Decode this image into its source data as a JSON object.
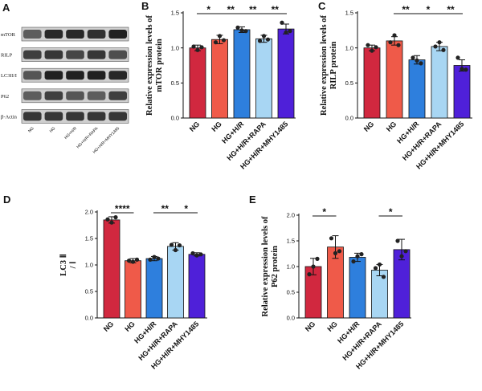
{
  "colors": [
    "#d1283f",
    "#ef5a49",
    "#2e7fdd",
    "#a8d6f3",
    "#4f20d9"
  ],
  "blot": {
    "letter": "A",
    "rows": [
      "mTOR",
      "RILP",
      "LC3II/I",
      "P62",
      "β-Actin"
    ],
    "lanes": [
      "NG",
      "HG",
      "HG+H/R",
      "HG+H/R+RAPA",
      "HG+H/R+MHY1485"
    ]
  },
  "chart_data": [
    {
      "panel": "B",
      "type": "bar",
      "categories": [
        "NG",
        "HG",
        "HG+H/R",
        "HG+H/R+RAPA",
        "HG+H/R+MHY1485"
      ],
      "values": [
        1.0,
        1.12,
        1.26,
        1.13,
        1.27
      ],
      "errors": [
        0.04,
        0.06,
        0.04,
        0.05,
        0.07
      ],
      "points": [
        [
          1.02,
          0.97,
          1.01
        ],
        [
          1.08,
          1.17,
          1.11
        ],
        [
          1.29,
          1.25,
          1.24
        ],
        [
          1.1,
          1.17,
          1.12
        ],
        [
          1.36,
          1.22,
          1.24
        ]
      ],
      "ylabel": "Relative expression levels of mTOR protein",
      "ylim": [
        0,
        1.5
      ],
      "yticks": [
        "0.0",
        "0.5",
        "1.0",
        "1.5"
      ],
      "significance": [
        {
          "from": 0,
          "to": 1,
          "label": "*"
        },
        {
          "from": 1,
          "to": 2,
          "label": "**"
        },
        {
          "from": 2,
          "to": 3,
          "label": "**"
        },
        {
          "from": 3,
          "to": 4,
          "label": "**"
        }
      ]
    },
    {
      "panel": "C",
      "type": "bar",
      "categories": [
        "NG",
        "HG",
        "HG+H/R",
        "HG+H/R+RAPA",
        "HG+H/R+MHY1485"
      ],
      "values": [
        1.0,
        1.1,
        0.83,
        1.02,
        0.75
      ],
      "errors": [
        0.04,
        0.06,
        0.06,
        0.06,
        0.08
      ],
      "points": [
        [
          1.04,
          0.96,
          1.01
        ],
        [
          1.08,
          1.18,
          1.04
        ],
        [
          0.86,
          0.82,
          0.78
        ],
        [
          1.02,
          1.08,
          0.97
        ],
        [
          0.86,
          0.7,
          0.69
        ]
      ],
      "ylabel": "Relative expression levels of RILP protein",
      "ylim": [
        0,
        1.5
      ],
      "yticks": [
        "0.0",
        "0.5",
        "1.0",
        "1.5"
      ],
      "significance": [
        {
          "from": 1,
          "to": 2,
          "label": "**"
        },
        {
          "from": 2,
          "to": 3,
          "label": "*"
        },
        {
          "from": 3,
          "to": 4,
          "label": "**"
        }
      ]
    },
    {
      "panel": "D",
      "type": "bar",
      "categories": [
        "NG",
        "HG",
        "HG+H/R",
        "HG+H/R+RAPA",
        "HG+H/R+MHY1485"
      ],
      "values": [
        1.85,
        1.08,
        1.12,
        1.35,
        1.2
      ],
      "errors": [
        0.06,
        0.04,
        0.04,
        0.07,
        0.03
      ],
      "points": [
        [
          1.86,
          1.8,
          1.9
        ],
        [
          1.08,
          1.06,
          1.1
        ],
        [
          1.1,
          1.15,
          1.12
        ],
        [
          1.38,
          1.28,
          1.37
        ],
        [
          1.22,
          1.18,
          1.2
        ]
      ],
      "ylabel": "LC3 Ⅱ / Ⅰ",
      "ylim": [
        0,
        2.0
      ],
      "yticks": [
        "0.0",
        "0.5",
        "1.0",
        "1.5",
        "2.0"
      ],
      "significance": [
        {
          "from": 0,
          "to": 1,
          "label": "****"
        },
        {
          "from": 2,
          "to": 3,
          "label": "**"
        },
        {
          "from": 3,
          "to": 4,
          "label": "*"
        }
      ]
    },
    {
      "panel": "E",
      "type": "bar",
      "categories": [
        "NG",
        "HG",
        "HG+H/R",
        "HG+H/R+RAPA",
        "HG+H/R+MHY1485"
      ],
      "values": [
        1.0,
        1.38,
        1.18,
        0.93,
        1.33
      ],
      "errors": [
        0.16,
        0.22,
        0.08,
        0.11,
        0.2
      ],
      "points": [
        [
          0.85,
          1.0,
          1.15
        ],
        [
          1.55,
          1.26,
          1.3
        ],
        [
          1.1,
          1.2,
          1.24
        ],
        [
          0.97,
          1.04,
          0.8
        ],
        [
          1.5,
          1.2,
          1.3
        ]
      ],
      "ylabel": "Relative expression levels of P62 protein",
      "ylim": [
        0,
        2.0
      ],
      "yticks": [
        "0.0",
        "0.5",
        "1.0",
        "1.5",
        "2.0"
      ],
      "significance": [
        {
          "from": 0,
          "to": 1,
          "label": "*"
        },
        {
          "from": 3,
          "to": 4,
          "label": "*"
        }
      ]
    }
  ]
}
